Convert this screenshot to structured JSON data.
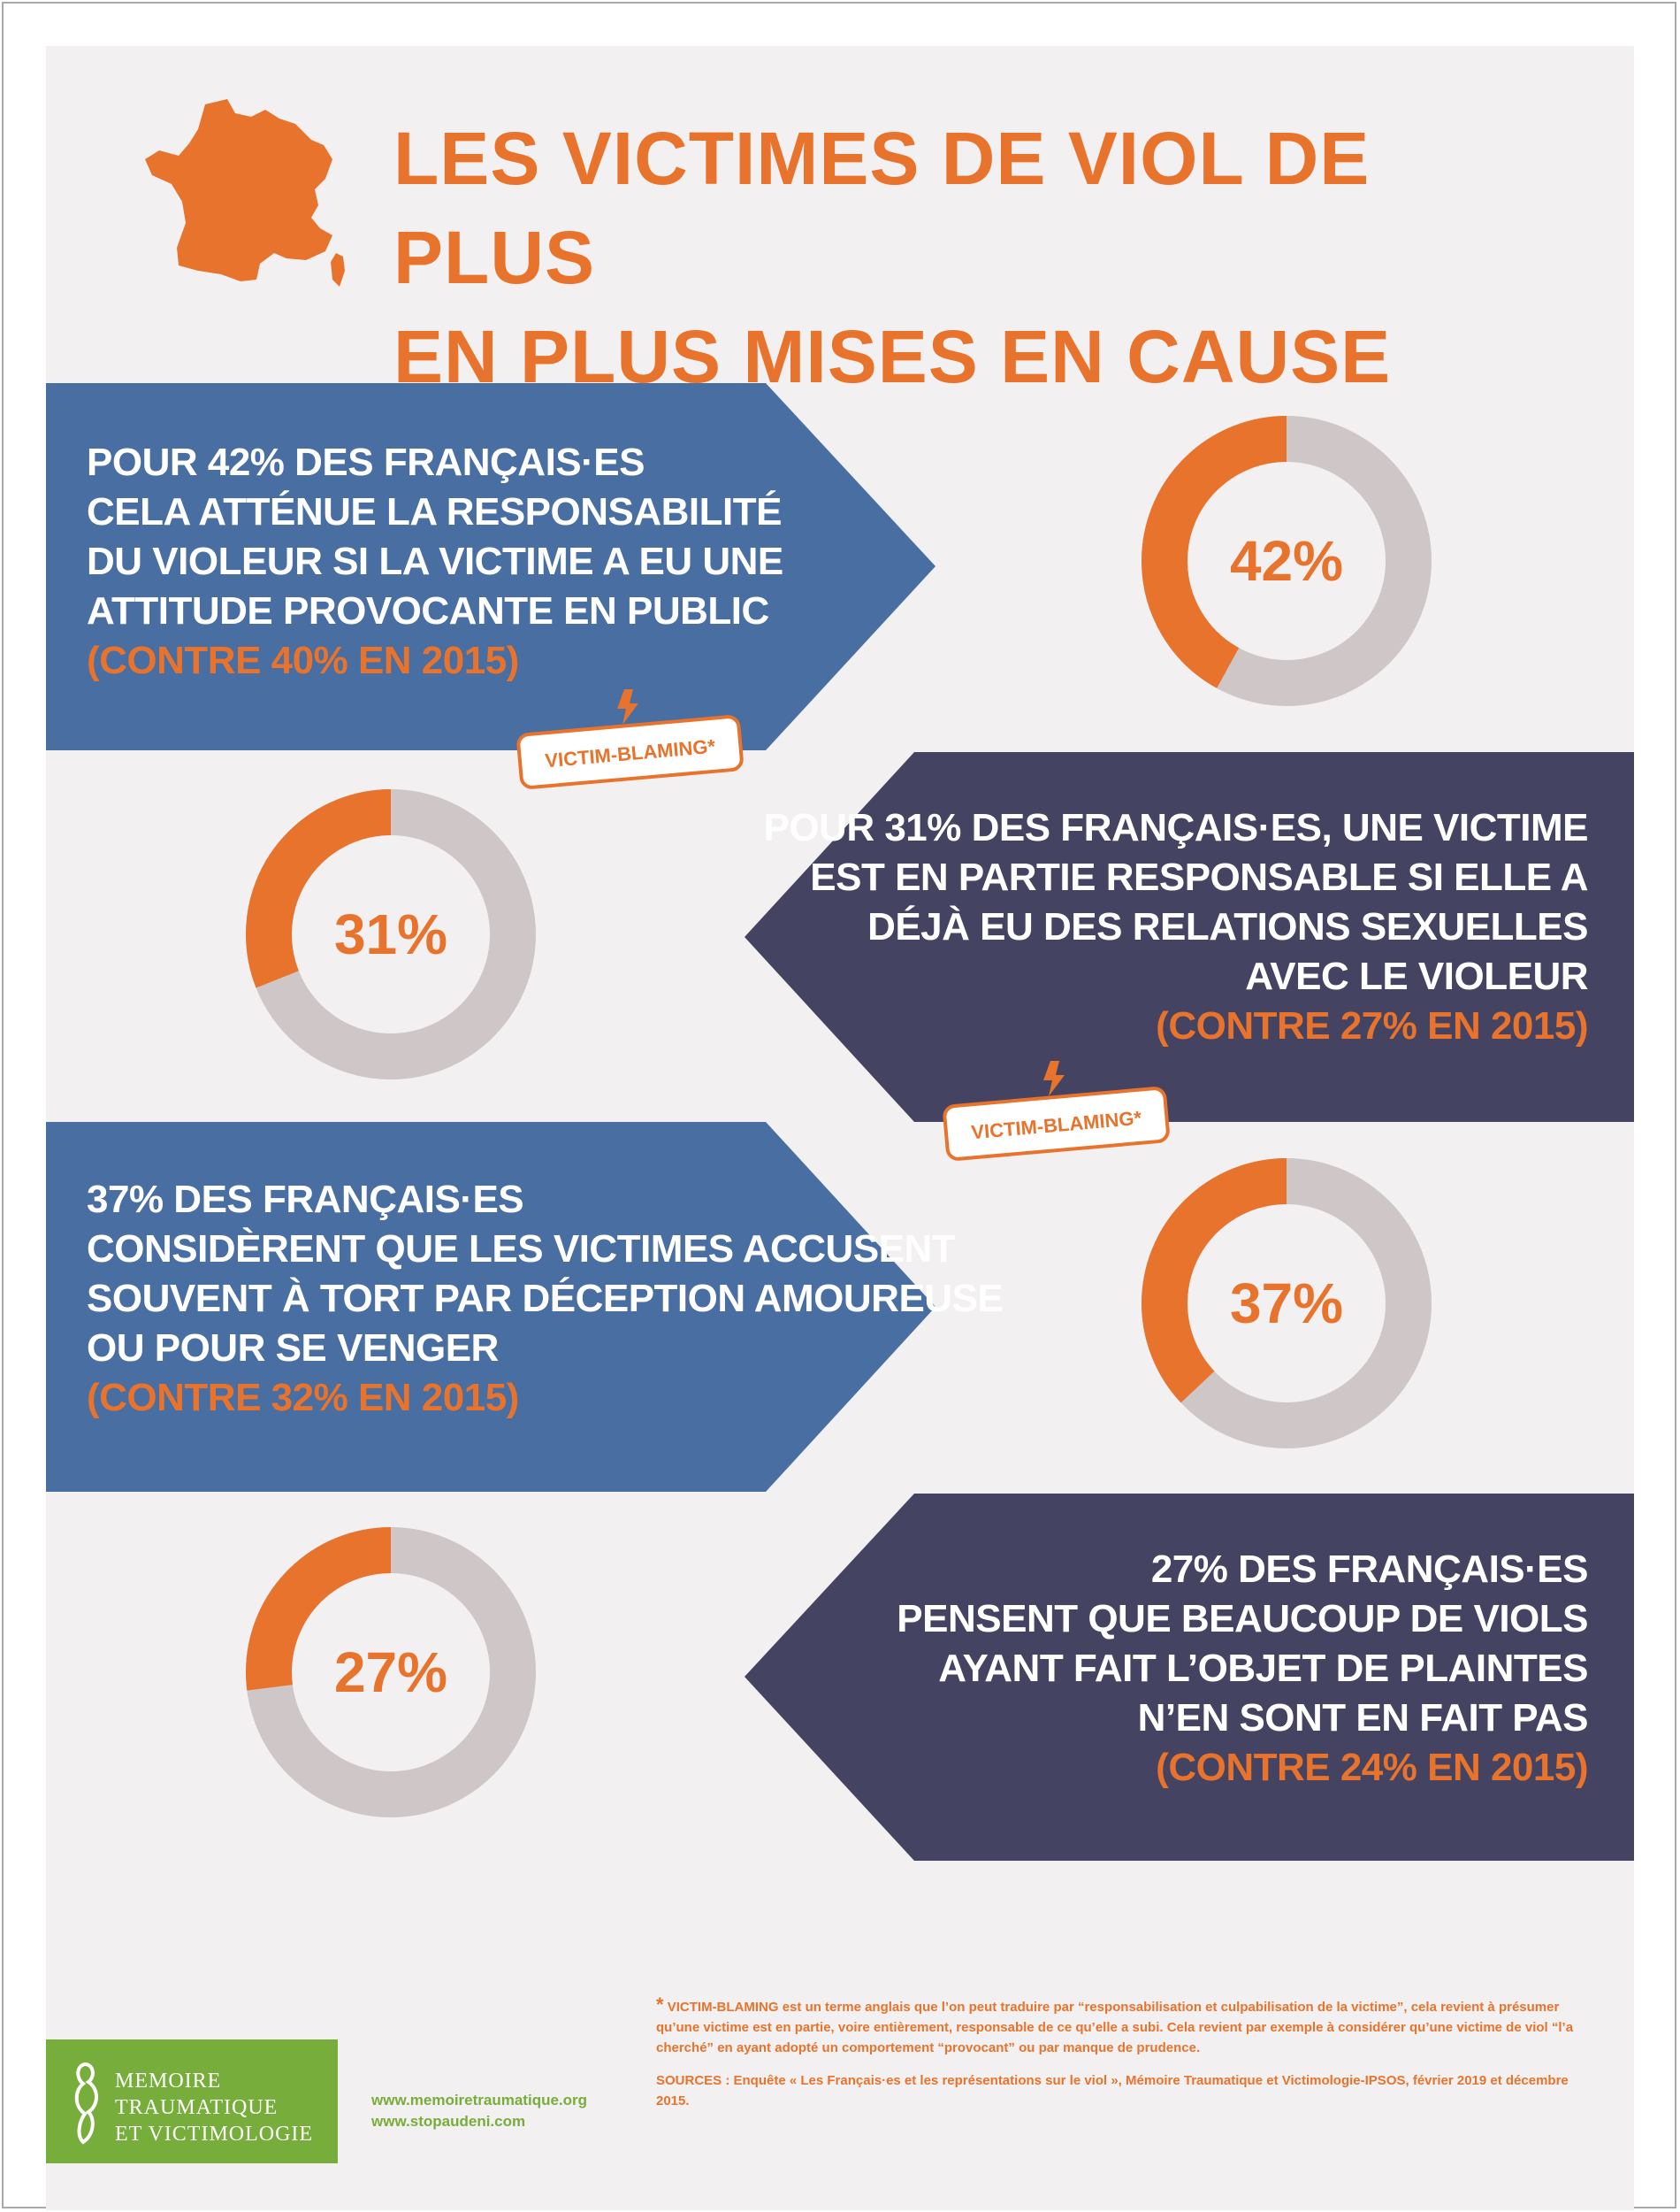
{
  "colors": {
    "orange": "#e8732c",
    "blue": "#486ea2",
    "purple": "#454362",
    "grey_ring": "#cfc7c7",
    "background": "#f2f0f0",
    "green": "#77ad3a"
  },
  "header": {
    "title_line1": "LES VICTIMES DE VIOL DE PLUS",
    "title_line2": "EN PLUS MISES EN CAUSE",
    "icon": "france-map-icon"
  },
  "tag": {
    "label": "VICTIM-BLAMING*",
    "icon": "lightning-icon"
  },
  "stats": [
    {
      "lines": [
        "POUR 42% DES FRANÇAIS·ES",
        "CELA ATTÉNUE LA RESPONSABILITÉ",
        "DU VIOLEUR SI LA VICTIME A EU UNE",
        "ATTITUDE PROVOCANTE EN PUBLIC"
      ],
      "previous": "(CONTRE 40% EN 2015)",
      "percent_label": "42%"
    },
    {
      "lines": [
        "POUR 31% DES FRANÇAIS·ES, UNE VICTIME",
        "EST EN PARTIE RESPONSABLE SI ELLE A",
        "DÉJÀ EU DES RELATIONS SEXUELLES",
        "AVEC LE VIOLEUR"
      ],
      "previous": "(CONTRE 27% EN 2015)",
      "percent_label": "31%"
    },
    {
      "lines": [
        "37% DES FRANÇAIS·ES",
        "CONSIDÈRENT QUE LES VICTIMES ACCUSENT",
        "SOUVENT À TORT PAR DÉCEPTION AMOUREUSE",
        "OU POUR SE VENGER"
      ],
      "previous": "(CONTRE 32% EN 2015)",
      "percent_label": "37%"
    },
    {
      "lines": [
        "27% DES FRANÇAIS·ES",
        "PENSENT QUE BEAUCOUP DE VIOLS",
        "AYANT FAIT L’OBJET DE PLAINTES",
        "N’EN SONT EN FAIT PAS"
      ],
      "previous": "(CONTRE 24% EN 2015)",
      "percent_label": "27%"
    }
  ],
  "chart_data": {
    "type": "pie",
    "variant": "donut",
    "categories": [
      "42%",
      "31%",
      "37%",
      "27%"
    ],
    "values": [
      42,
      31,
      37,
      27
    ],
    "previous_values_2015": [
      40,
      27,
      32,
      24
    ],
    "max": 100
  },
  "footer": {
    "logo_lines": [
      "MEMOIRE",
      "TRAUMATIQUE",
      "ET VICTIMOLOGIE"
    ],
    "logo_icon": "logo-figure-icon",
    "url1": "www.memoiretraumatique.org",
    "url2": "www.stopaudeni.com",
    "footnote_star": "*",
    "footnote": "VICTIM-BLAMING est un terme anglais que l’on peut traduire par “responsabilisation et culpabilisation de la victime”, cela revient à présumer qu’une victime est en partie, voire entièrement, responsable de ce qu’elle a subi. Cela revient par exemple à considérer qu’une victime de viol “l’a cherché” en ayant adopté un comportement “provocant” ou par manque de prudence.",
    "sources": "SOURCES :  Enquête « Les Français·es et les représentations sur le viol », Mémoire Traumatique et Victimologie-IPSOS, février 2019 et décembre 2015."
  }
}
